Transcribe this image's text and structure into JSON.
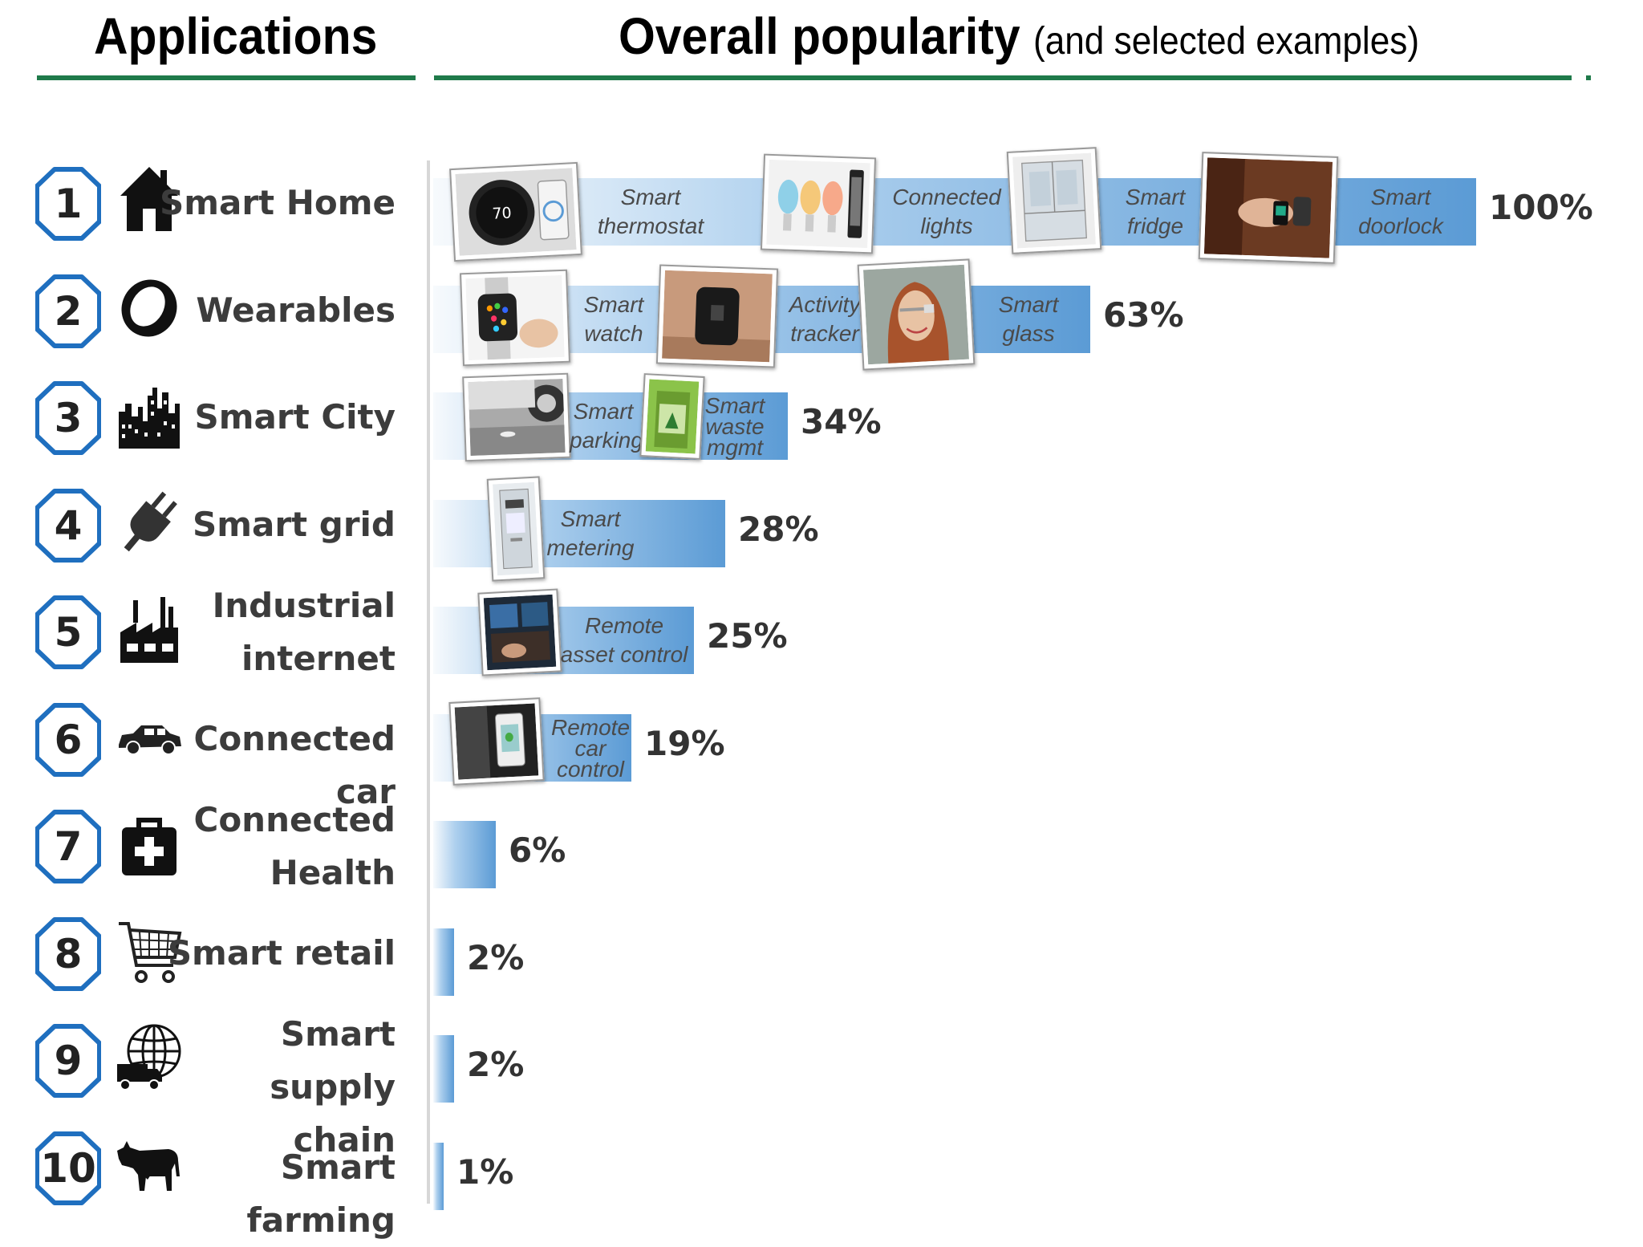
{
  "header": {
    "left_title": "Applications",
    "right_title": "Overall popularity",
    "right_subtitle": "(and selected examples)"
  },
  "colors": {
    "bar": "#5b9bd5",
    "badge": "#1f6fbf",
    "rule": "#1f7a4a"
  },
  "chart_data": {
    "type": "bar",
    "orientation": "horizontal",
    "categories": [
      "Smart Home",
      "Wearables",
      "Smart City",
      "Smart grid",
      "Industrial internet",
      "Connected car",
      "Connected Health",
      "Smart retail",
      "Smart supply chain",
      "Smart farming"
    ],
    "values": [
      100,
      63,
      34,
      28,
      25,
      19,
      6,
      2,
      2,
      1
    ],
    "value_labels": [
      "100%",
      "63%",
      "34%",
      "28%",
      "25%",
      "19%",
      "6%",
      "2%",
      "2%",
      "1%"
    ],
    "xlim": [
      0,
      100
    ]
  },
  "rows": [
    {
      "rank": "1",
      "label_lines": [
        "Smart Home"
      ],
      "icon": "house-icon",
      "pct": "100%",
      "examples": [
        {
          "lines": [
            "Smart",
            "thermostat"
          ],
          "photo": "thermostat"
        },
        {
          "lines": [
            "Connected",
            "lights"
          ],
          "photo": "lights"
        },
        {
          "lines": [
            "Smart",
            "fridge"
          ],
          "photo": "fridge"
        },
        {
          "lines": [
            "Smart",
            "doorlock"
          ],
          "photo": "doorlock"
        }
      ]
    },
    {
      "rank": "2",
      "label_lines": [
        "Wearables"
      ],
      "icon": "ring-icon",
      "pct": "63%",
      "examples": [
        {
          "lines": [
            "Smart",
            "watch"
          ],
          "photo": "watch"
        },
        {
          "lines": [
            "Activity",
            "tracker"
          ],
          "photo": "tracker"
        },
        {
          "lines": [
            "Smart",
            "glass"
          ],
          "photo": "glass"
        }
      ]
    },
    {
      "rank": "3",
      "label_lines": [
        "Smart City"
      ],
      "icon": "city-icon",
      "pct": "34%",
      "examples": [
        {
          "lines": [
            "Smart",
            "parking"
          ],
          "photo": "parking"
        },
        {
          "lines": [
            "Smart",
            "waste",
            "mgmt"
          ],
          "photo": "waste"
        }
      ]
    },
    {
      "rank": "4",
      "label_lines": [
        "Smart grid"
      ],
      "icon": "plug-icon",
      "pct": "28%",
      "examples": [
        {
          "lines": [
            "Smart",
            "metering"
          ],
          "photo": "meter"
        }
      ]
    },
    {
      "rank": "5",
      "label_lines": [
        "Industrial",
        "internet"
      ],
      "icon": "factory-icon",
      "pct": "25%",
      "examples": [
        {
          "lines": [
            "Remote",
            "asset control"
          ],
          "photo": "asset"
        }
      ]
    },
    {
      "rank": "6",
      "label_lines": [
        "Connected car"
      ],
      "icon": "car-icon",
      "pct": "19%",
      "examples": [
        {
          "lines": [
            "Remote",
            "car",
            "control"
          ],
          "photo": "phonecar"
        }
      ]
    },
    {
      "rank": "7",
      "label_lines": [
        "Connected",
        "Health"
      ],
      "icon": "medkit-icon",
      "pct": "6%",
      "examples": []
    },
    {
      "rank": "8",
      "label_lines": [
        "Smart retail"
      ],
      "icon": "cart-icon",
      "pct": "2%",
      "examples": []
    },
    {
      "rank": "9",
      "label_lines": [
        "Smart supply",
        "chain"
      ],
      "icon": "globe-truck-icon",
      "pct": "2%",
      "examples": []
    },
    {
      "rank": "10",
      "label_lines": [
        "Smart farming"
      ],
      "icon": "cow-icon",
      "pct": "1%",
      "examples": []
    }
  ]
}
